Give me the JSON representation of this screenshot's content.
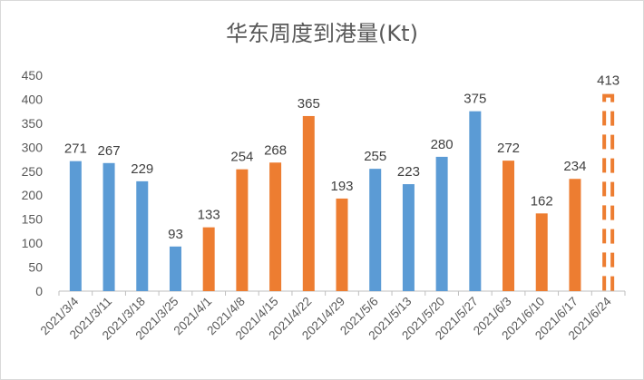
{
  "chart_data": {
    "type": "bar",
    "title": "华东周度到港量(Kt)",
    "xlabel": "",
    "ylabel": "",
    "ylim": [
      0,
      450
    ],
    "yticks": [
      0,
      50,
      100,
      150,
      200,
      250,
      300,
      350,
      400,
      450
    ],
    "grid": false,
    "legend": "none",
    "categories": [
      "2021/3/4",
      "2021/3/11",
      "2021/3/18",
      "2021/3/25",
      "2021/4/1",
      "2021/4/8",
      "2021/4/15",
      "2021/4/22",
      "2021/4/29",
      "2021/5/6",
      "2021/5/13",
      "2021/5/20",
      "2021/5/27",
      "2021/6/3",
      "2021/6/10",
      "2021/6/17",
      "2021/6/24"
    ],
    "values": [
      271,
      267,
      229,
      93,
      133,
      254,
      268,
      365,
      193,
      255,
      223,
      280,
      375,
      272,
      162,
      234,
      413
    ],
    "bar_colors": [
      "#5b9bd5",
      "#5b9bd5",
      "#5b9bd5",
      "#5b9bd5",
      "#ed7d31",
      "#ed7d31",
      "#ed7d31",
      "#ed7d31",
      "#ed7d31",
      "#5b9bd5",
      "#5b9bd5",
      "#5b9bd5",
      "#5b9bd5",
      "#ed7d31",
      "#ed7d31",
      "#ed7d31",
      "dashed-outline"
    ],
    "colors": {
      "blue": "#5b9bd5",
      "orange": "#ed7d31",
      "axis": "#bfbfbf",
      "text": "#595959"
    }
  }
}
